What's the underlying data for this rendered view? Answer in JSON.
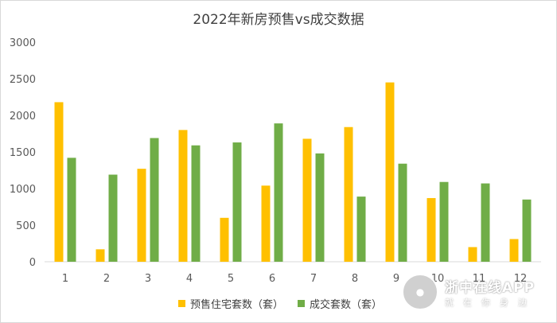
{
  "chart_data": {
    "type": "bar",
    "title": "2022年新房预售vs成交数据",
    "xlabel": "",
    "ylabel": "",
    "categories": [
      "1",
      "2",
      "3",
      "4",
      "5",
      "6",
      "7",
      "8",
      "9",
      "10",
      "11",
      "12"
    ],
    "ylim": [
      0,
      3000
    ],
    "yticks": [
      0,
      500,
      1000,
      1500,
      2000,
      2500,
      3000
    ],
    "grid": false,
    "legend_position": "bottom",
    "series": [
      {
        "name": "预售住宅套数（套）",
        "color": "#FFC000",
        "values": [
          2180,
          170,
          1270,
          1800,
          600,
          1040,
          1680,
          1840,
          2450,
          870,
          200,
          310
        ]
      },
      {
        "name": "成交套数（套）",
        "color": "#70AD47",
        "values": [
          1420,
          1190,
          1690,
          1590,
          1630,
          1890,
          1480,
          890,
          1340,
          1090,
          1070,
          850
        ]
      }
    ]
  },
  "watermark": {
    "name": "浙中在线APP",
    "slogan": "就在你身边"
  }
}
